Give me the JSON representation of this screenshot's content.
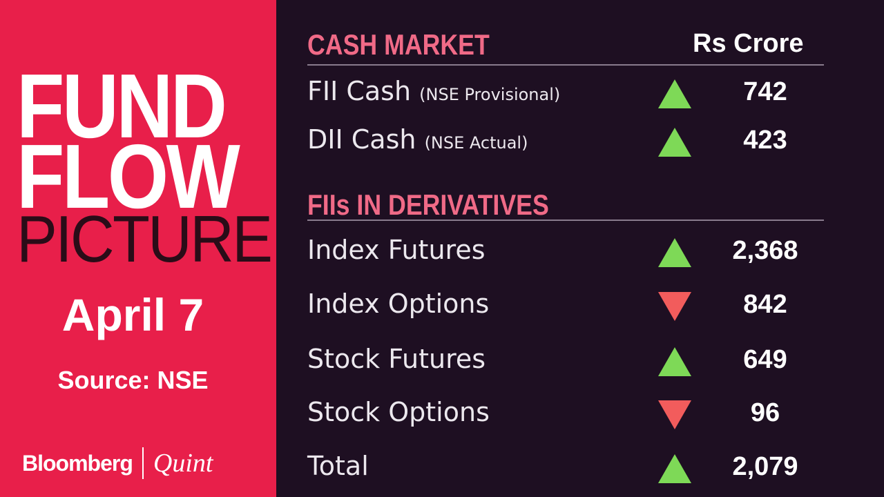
{
  "left": {
    "title_line1": "FUND",
    "title_line2": "FLOW",
    "title_line3": "PICTURE",
    "date": "April 7",
    "source": "Source: NSE",
    "logo_left": "Bloomberg",
    "logo_right": "Quint"
  },
  "colors": {
    "panel": "#e81f4a",
    "background": "#1e0f22",
    "heading": "#f06a87",
    "up": "#7ed957",
    "down": "#f25c5c"
  },
  "cash_market": {
    "heading": "CASH MARKET",
    "unit": "Rs Crore",
    "rows": [
      {
        "label": "FII Cash",
        "note": "(NSE Provisional)",
        "direction": "up",
        "value": "742"
      },
      {
        "label": "DII Cash",
        "note": "(NSE Actual)",
        "direction": "up",
        "value": "423"
      }
    ]
  },
  "derivatives": {
    "heading": "FIIs IN DERIVATIVES",
    "rows": [
      {
        "label": "Index Futures",
        "direction": "up",
        "value": "2,368"
      },
      {
        "label": "Index Options",
        "direction": "down",
        "value": "842"
      },
      {
        "label": "Stock Futures",
        "direction": "up",
        "value": "649"
      },
      {
        "label": "Stock Options",
        "direction": "down",
        "value": "96"
      },
      {
        "label": "Total",
        "direction": "up",
        "value": "2,079"
      }
    ]
  }
}
